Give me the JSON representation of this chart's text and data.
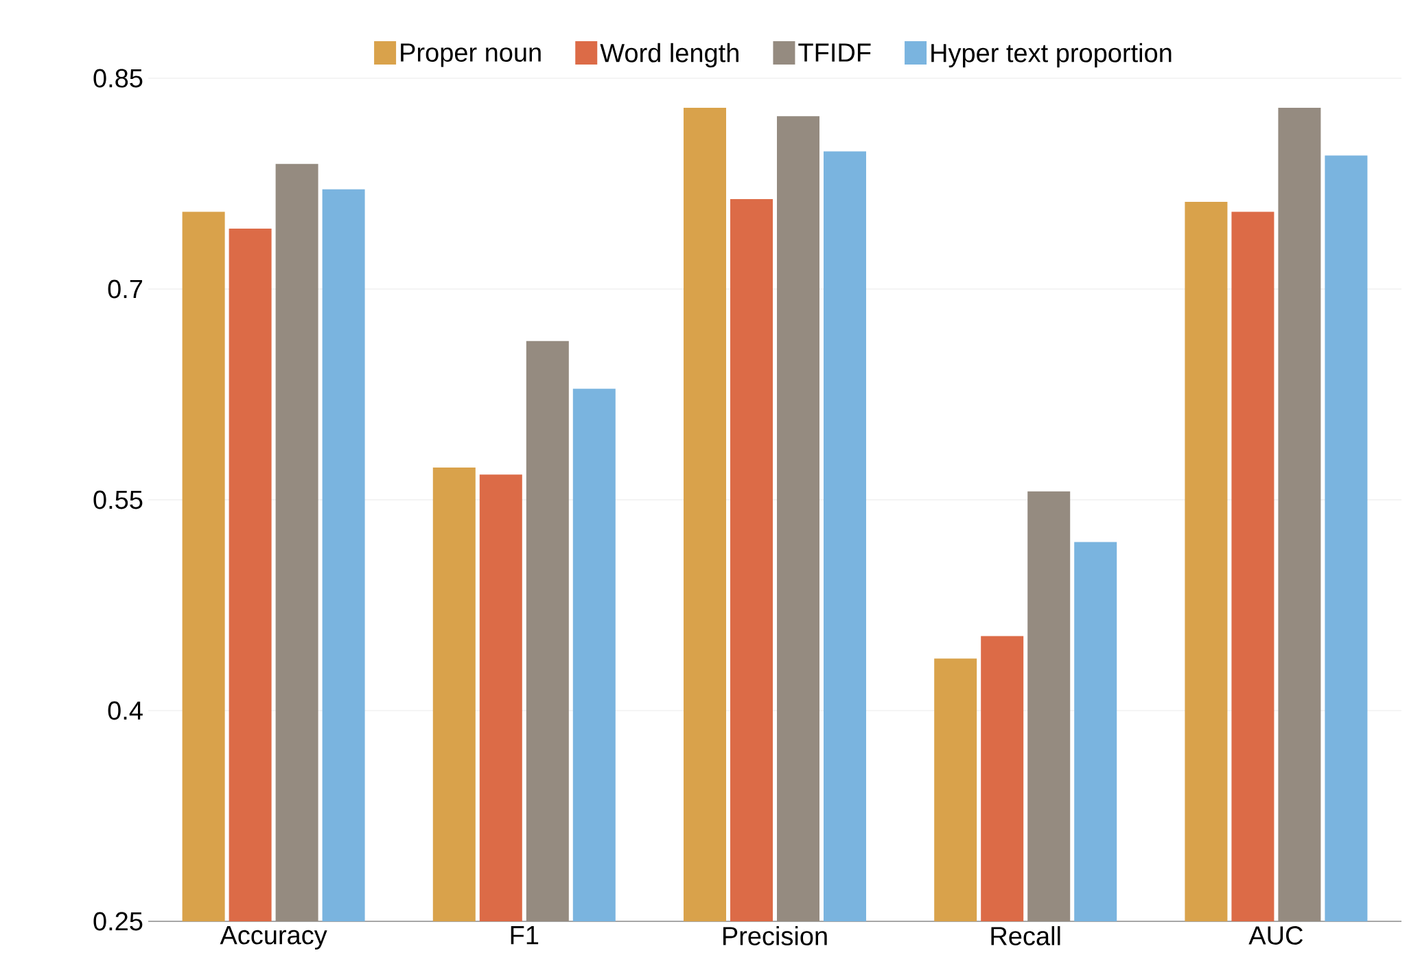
{
  "chart_data": {
    "type": "bar",
    "categories": [
      "Accuracy",
      "F1",
      "Precision",
      "Recall",
      "AUC"
    ],
    "series": [
      {
        "name": "Proper noun",
        "color": "#d9a24b",
        "values": [
          0.755,
          0.573,
          0.829,
          0.437,
          0.762
        ]
      },
      {
        "name": "Word length",
        "color": "#dc6b47",
        "values": [
          0.743,
          0.568,
          0.764,
          0.453,
          0.755
        ]
      },
      {
        "name": "TFIDF",
        "color": "#958b80",
        "values": [
          0.789,
          0.663,
          0.823,
          0.556,
          0.829
        ]
      },
      {
        "name": "Hyper text proportion",
        "color": "#7ab4df",
        "values": [
          0.771,
          0.629,
          0.798,
          0.52,
          0.795
        ]
      }
    ],
    "ylim": [
      0.25,
      0.85
    ],
    "yticks": [
      0.25,
      0.4,
      0.55,
      0.7,
      0.85
    ],
    "grid": "y",
    "legend": "top"
  }
}
